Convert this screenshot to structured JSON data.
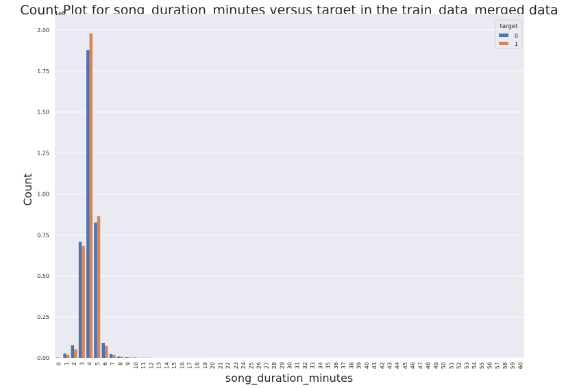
{
  "chart_data": {
    "type": "bar",
    "title": "Count Plot for song_duration_minutes versus target in the train_data_merged data",
    "xlabel": "song_duration_minutes",
    "ylabel": "Count",
    "y_offset_label": "1e6",
    "ylim": [
      0,
      2.1
    ],
    "y_ticks": [
      "0.00",
      "0.25",
      "0.50",
      "0.75",
      "1.00",
      "1.25",
      "1.50",
      "1.75",
      "2.00"
    ],
    "categories": [
      "0",
      "1",
      "2",
      "3",
      "4",
      "5",
      "6",
      "7",
      "8",
      "9",
      "10",
      "11",
      "12",
      "13",
      "14",
      "15",
      "16",
      "17",
      "18",
      "19",
      "20",
      "21",
      "22",
      "23",
      "24",
      "25",
      "26",
      "27",
      "28",
      "29",
      "30",
      "31",
      "32",
      "33",
      "34",
      "35",
      "36",
      "37",
      "38",
      "39",
      "40",
      "41",
      "42",
      "43",
      "44",
      "45",
      "46",
      "47",
      "48",
      "49",
      "50",
      "51",
      "52",
      "53",
      "54",
      "55",
      "56",
      "57",
      "58",
      "59",
      "60"
    ],
    "series": [
      {
        "name": "0",
        "color": "#4c72b0",
        "values": [
          0.002,
          0.027,
          0.078,
          0.708,
          1.878,
          0.825,
          0.092,
          0.024,
          0.008,
          0.004,
          0.002,
          0.001,
          0.001,
          0.0005,
          0.0004,
          0.0003,
          0.0002,
          0.0002,
          0.0001,
          0.0001,
          0.0001,
          0,
          0,
          0,
          0,
          0,
          0,
          0,
          0,
          0,
          0,
          0,
          0,
          0,
          0,
          0,
          0,
          0,
          0,
          0,
          0,
          0,
          0,
          0,
          0,
          0,
          0,
          0,
          0,
          0,
          0,
          0,
          0,
          0,
          0,
          0,
          0,
          0,
          0,
          0,
          0
        ]
      },
      {
        "name": "1",
        "color": "#dd8452",
        "values": [
          0.001,
          0.018,
          0.052,
          0.684,
          1.98,
          0.864,
          0.073,
          0.017,
          0.006,
          0.003,
          0.0015,
          0.0008,
          0.0005,
          0.0004,
          0.0003,
          0.0002,
          0.0002,
          0.0001,
          0.0001,
          0.0001,
          0,
          0,
          0,
          0,
          0,
          0,
          0,
          0,
          0,
          0,
          0,
          0,
          0,
          0,
          0,
          0,
          0,
          0,
          0,
          0,
          0,
          0,
          0,
          0,
          0,
          0,
          0,
          0,
          0,
          0,
          0,
          0,
          0,
          0,
          0,
          0,
          0,
          0,
          0,
          0,
          0
        ]
      }
    ],
    "legend": {
      "title": "target",
      "placement": "top-right"
    },
    "grid": true,
    "plot_background": "#eaeaf2",
    "grid_color": "#ffffff"
  }
}
